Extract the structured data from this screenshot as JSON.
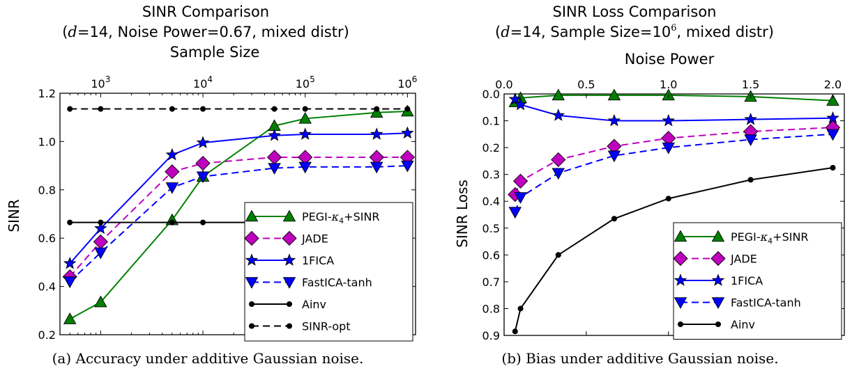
{
  "chart_data": [
    {
      "type": "line",
      "title": "SINR Comparison",
      "subtitle": "(d=14, Noise Power=0.67, mixed distr)",
      "xlabel": "Sample Size",
      "ylabel": "SINR",
      "xscale": "log",
      "xaxis_position": "top",
      "xlim": [
        400,
        1200000
      ],
      "ylim": [
        0.2,
        1.2
      ],
      "yticks": [
        "0.2",
        "0.4",
        "0.6",
        "0.8",
        "1.0",
        "1.2"
      ],
      "xticks": [
        {
          "value": 1000,
          "base": "10",
          "exp": "3"
        },
        {
          "value": 10000,
          "base": "10",
          "exp": "4"
        },
        {
          "value": 100000,
          "base": "10",
          "exp": "5"
        },
        {
          "value": 1000000,
          "base": "10",
          "exp": "6"
        }
      ],
      "grid": false,
      "legend_position": "bottom-right",
      "x": [
        500,
        1000,
        5000,
        10000,
        50000,
        100000,
        500000,
        1000000
      ],
      "series": [
        {
          "name": "PEGI-κ4+SINR",
          "name_main": "PEGI-",
          "name_sym": "κ",
          "name_sub": "4",
          "name_tail": "+SINR",
          "color": "#008000",
          "marker": "triangle-up",
          "dash": "solid",
          "values": [
            0.265,
            0.335,
            0.675,
            0.855,
            1.065,
            1.095,
            1.12,
            1.125
          ]
        },
        {
          "name": "JADE",
          "color": "#bf00bf",
          "marker": "diamond",
          "dash": "dashed",
          "values": [
            0.44,
            0.585,
            0.875,
            0.91,
            0.935,
            0.935,
            0.935,
            0.935
          ]
        },
        {
          "name": "1FICA",
          "color": "#0000ff",
          "marker": "star",
          "dash": "solid",
          "values": [
            0.495,
            0.64,
            0.945,
            0.995,
            1.025,
            1.03,
            1.03,
            1.035
          ]
        },
        {
          "name": "FastICA-tanh",
          "color": "#0000ff",
          "marker": "triangle-down",
          "dash": "dashed",
          "values": [
            0.42,
            0.54,
            0.81,
            0.855,
            0.89,
            0.895,
            0.895,
            0.9
          ]
        },
        {
          "name": "Ainv",
          "color": "#000000",
          "marker": "dot",
          "dash": "solid",
          "values": [
            0.665,
            0.665,
            0.665,
            0.665,
            0.665,
            0.665,
            0.665,
            0.665
          ]
        },
        {
          "name": "SINR-opt",
          "color": "#000000",
          "marker": "dot",
          "dash": "dashed",
          "values": [
            1.135,
            1.135,
            1.135,
            1.135,
            1.135,
            1.135,
            1.135,
            1.135
          ]
        }
      ],
      "caption": "(a) Accuracy under additive Gaussian noise."
    },
    {
      "type": "line",
      "title": "SINR Loss Comparison",
      "subtitle": "(d=14, Sample Size=10^6, mixed distr)",
      "xlabel": "Noise Power",
      "ylabel": "SINR Loss",
      "xaxis_position": "top",
      "yaxis_inverted": true,
      "xlim": [
        0,
        2.07
      ],
      "ylim": [
        0.9,
        0.0
      ],
      "xticks": [
        "0.0",
        "0.5",
        "1.0",
        "1.5",
        "2.0"
      ],
      "yticks": [
        "0.0",
        "0.1",
        "0.2",
        "0.3",
        "0.4",
        "0.5",
        "0.6",
        "0.7",
        "0.8",
        "0.9"
      ],
      "grid": false,
      "legend_position": "bottom-right",
      "x": [
        0.067,
        0.1,
        0.33,
        0.67,
        1.0,
        1.5,
        2.0
      ],
      "series": [
        {
          "name": "PEGI-κ4+SINR",
          "name_main": "PEGI-",
          "name_sym": "κ",
          "name_sub": "4",
          "name_tail": "+SINR",
          "color": "#008000",
          "marker": "triangle-up",
          "dash": "solid",
          "values": [
            0.03,
            0.015,
            0.005,
            0.005,
            0.005,
            0.01,
            0.025
          ]
        },
        {
          "name": "JADE",
          "color": "#bf00bf",
          "marker": "diamond",
          "dash": "dashed",
          "values": [
            0.375,
            0.325,
            0.245,
            0.195,
            0.165,
            0.14,
            0.125
          ]
        },
        {
          "name": "1FICA",
          "color": "#0000ff",
          "marker": "star",
          "dash": "solid",
          "values": [
            0.02,
            0.04,
            0.08,
            0.1,
            0.1,
            0.095,
            0.09
          ]
        },
        {
          "name": "FastICA-tanh",
          "color": "#0000ff",
          "marker": "triangle-down",
          "dash": "dashed",
          "values": [
            0.44,
            0.385,
            0.295,
            0.23,
            0.2,
            0.17,
            0.15
          ]
        },
        {
          "name": "Ainv",
          "color": "#000000",
          "marker": "dot",
          "dash": "solid",
          "values": [
            0.885,
            0.8,
            0.6,
            0.465,
            0.39,
            0.32,
            0.275
          ]
        }
      ],
      "caption": "(b) Bias under additive Gaussian noise."
    }
  ]
}
